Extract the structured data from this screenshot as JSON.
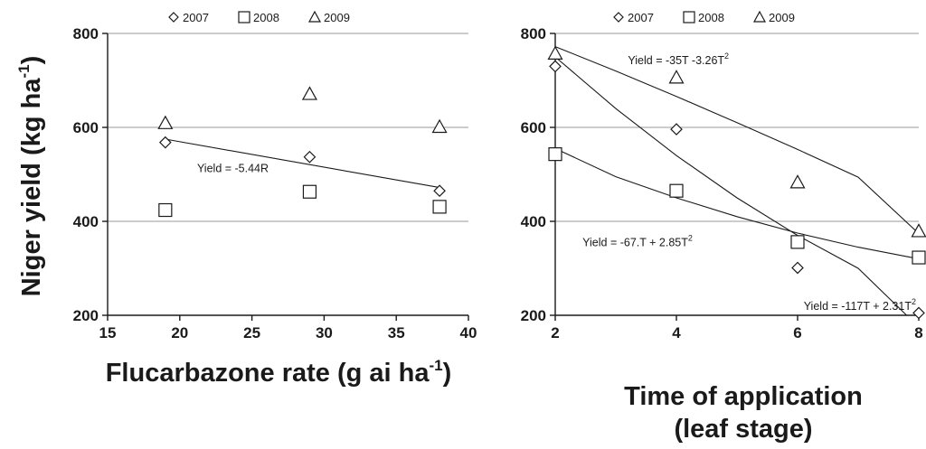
{
  "y_axis_title": {
    "main": "Niger yield (kg ha",
    "sup": "-1",
    "end": ")"
  },
  "chart_data": [
    {
      "type": "scatter",
      "xlabel": {
        "main": "Flucarbazone rate (g ai ha",
        "sup": "-1",
        "end": ")"
      },
      "ylabel": "Niger yield (kg ha-1)",
      "xlim": [
        15,
        40
      ],
      "ylim": [
        200,
        800
      ],
      "xticks": [
        15,
        20,
        25,
        30,
        35,
        40
      ],
      "yticks": [
        200,
        400,
        600,
        800
      ],
      "grid": true,
      "legend_position": "top",
      "series": [
        {
          "name": "2007",
          "marker": "diamond",
          "x": [
            19,
            29,
            38
          ],
          "y": [
            568,
            537,
            465
          ]
        },
        {
          "name": "2008",
          "marker": "square",
          "x": [
            19,
            29,
            38
          ],
          "y": [
            424,
            463,
            431
          ]
        },
        {
          "name": "2009",
          "marker": "triangle",
          "x": [
            19,
            29,
            38
          ],
          "y": [
            609,
            671,
            601
          ]
        }
      ],
      "fits": [
        {
          "points": [
            [
              19,
              575
            ],
            [
              38,
              472
            ]
          ]
        }
      ],
      "annotations": [
        {
          "parts": [
            {
              "t": "Yield = -5.44R"
            }
          ],
          "x": 21.2,
          "y": 505
        }
      ]
    },
    {
      "type": "scatter",
      "xlabel_lines": [
        "Time of application",
        "(leaf stage)"
      ],
      "ylabel": "Niger yield (kg ha-1)",
      "xlim": [
        2,
        8
      ],
      "ylim": [
        200,
        800
      ],
      "xticks": [
        2,
        4,
        6,
        8
      ],
      "yticks": [
        200,
        400,
        600,
        800
      ],
      "grid": true,
      "legend_position": "top",
      "series": [
        {
          "name": "2007",
          "marker": "diamond",
          "x": [
            2,
            4,
            6,
            8
          ],
          "y": [
            730,
            596,
            301,
            205
          ]
        },
        {
          "name": "2008",
          "marker": "square",
          "x": [
            2,
            4,
            6,
            8
          ],
          "y": [
            543,
            465,
            356,
            323
          ]
        },
        {
          "name": "2009",
          "marker": "triangle",
          "x": [
            2,
            4,
            6,
            8
          ],
          "y": [
            757,
            706,
            483,
            379
          ]
        }
      ],
      "fits": [
        {
          "points": [
            [
              2,
              772
            ],
            [
              3,
              720
            ],
            [
              4,
              666
            ],
            [
              5,
              610
            ],
            [
              6,
              553
            ],
            [
              7,
              494
            ],
            [
              8,
              374
            ]
          ]
        },
        {
          "points": [
            [
              2,
              750
            ],
            [
              3,
              640
            ],
            [
              4,
              540
            ],
            [
              5,
              450
            ],
            [
              6,
              370
            ],
            [
              7,
              300
            ],
            [
              7.8,
              200
            ]
          ]
        },
        {
          "points": [
            [
              2,
              555
            ],
            [
              3,
              495
            ],
            [
              4,
              450
            ],
            [
              5,
              410
            ],
            [
              6,
              375
            ],
            [
              7,
              345
            ],
            [
              8,
              320
            ]
          ]
        }
      ],
      "annotations": [
        {
          "parts": [
            {
              "t": "Yield = -35T -3.26T"
            },
            {
              "t": "2",
              "sup": true
            }
          ],
          "x": 3.2,
          "y": 735
        },
        {
          "parts": [
            {
              "t": "Yield = -67.T + 2.85T"
            },
            {
              "t": "2",
              "sup": true
            }
          ],
          "x": 2.45,
          "y": 347
        },
        {
          "parts": [
            {
              "t": "Yield = -117T + 2.31T"
            },
            {
              "t": "2",
              "sup": true
            }
          ],
          "x": 6.1,
          "y": 212
        }
      ]
    }
  ]
}
